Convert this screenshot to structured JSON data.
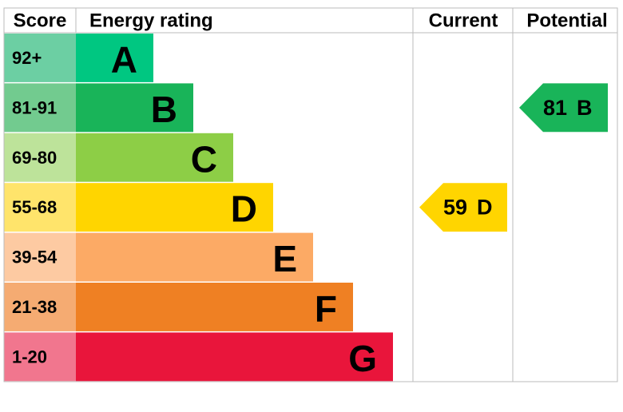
{
  "chart_data": {
    "type": "epc",
    "headers": {
      "score": "Score",
      "rating": "Energy rating",
      "current": "Current",
      "potential": "Potential"
    },
    "bands": [
      {
        "score": "92+",
        "letter": "A",
        "color": "#00c781",
        "score_color": "#6ccfa3"
      },
      {
        "score": "81-91",
        "letter": "B",
        "color": "#19b459",
        "score_color": "#72cb8f"
      },
      {
        "score": "69-80",
        "letter": "C",
        "color": "#8dce46",
        "score_color": "#bde39a"
      },
      {
        "score": "55-68",
        "letter": "D",
        "color": "#ffd500",
        "score_color": "#ffe46b"
      },
      {
        "score": "39-54",
        "letter": "E",
        "color": "#fcaa65",
        "score_color": "#fdcaa2"
      },
      {
        "score": "21-38",
        "letter": "F",
        "color": "#ef8023",
        "score_color": "#f5ab72"
      },
      {
        "score": "1-20",
        "letter": "G",
        "color": "#e9153b",
        "score_color": "#f1768e"
      }
    ],
    "current": {
      "value": 59,
      "letter": "D"
    },
    "potential": {
      "value": 81,
      "letter": "B"
    }
  }
}
